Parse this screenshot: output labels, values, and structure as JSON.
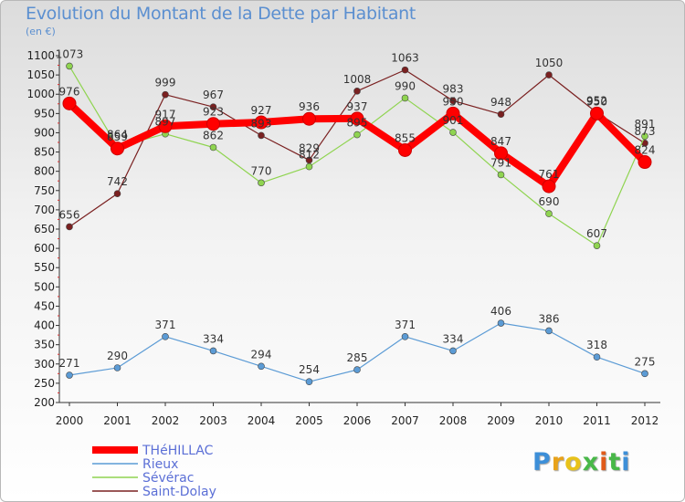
{
  "chart_data": {
    "type": "line",
    "title": "Evolution du Montant de la Dette par Habitant",
    "subtitle": "(en €)",
    "xlabel": "",
    "ylabel": "",
    "x": [
      "2000",
      "2001",
      "2002",
      "2003",
      "2004",
      "2005",
      "2006",
      "2007",
      "2008",
      "2009",
      "2010",
      "2011",
      "2012"
    ],
    "ylim": [
      200,
      1100
    ],
    "yticks": [
      200,
      250,
      300,
      350,
      400,
      450,
      500,
      550,
      600,
      650,
      700,
      750,
      800,
      850,
      900,
      950,
      1000,
      1050,
      1100
    ],
    "grid": false,
    "legend_position": "bottom-left",
    "series": [
      {
        "name": "THéHILLAC",
        "color": "#ff0000",
        "values": [
          976,
          859,
          917,
          923,
          927,
          936,
          937,
          855,
          950,
          847,
          761,
          950,
          824
        ]
      },
      {
        "name": "Rieux",
        "color": "#5b9bd5",
        "values": [
          271,
          290,
          371,
          334,
          294,
          254,
          285,
          371,
          334,
          406,
          386,
          318,
          275
        ]
      },
      {
        "name": "Sévérac",
        "color": "#8fd450",
        "values": [
          1073,
          864,
          897,
          862,
          770,
          812,
          895,
          990,
          901,
          791,
          690,
          607,
          891
        ]
      },
      {
        "name": "Saint-Dolay",
        "color": "#7a2020",
        "values": [
          656,
          742,
          999,
          967,
          893,
          829,
          1008,
          1063,
          983,
          948,
          1050,
          952,
          873
        ]
      }
    ]
  },
  "logo": {
    "letters": [
      "P",
      "r",
      "o",
      "x",
      "i",
      "t",
      "i"
    ],
    "colors": [
      "#3d8fd8",
      "#e8a21a",
      "#e8c21a",
      "#48b848",
      "#e05a1a",
      "#48b848",
      "#3d8fd8"
    ]
  }
}
